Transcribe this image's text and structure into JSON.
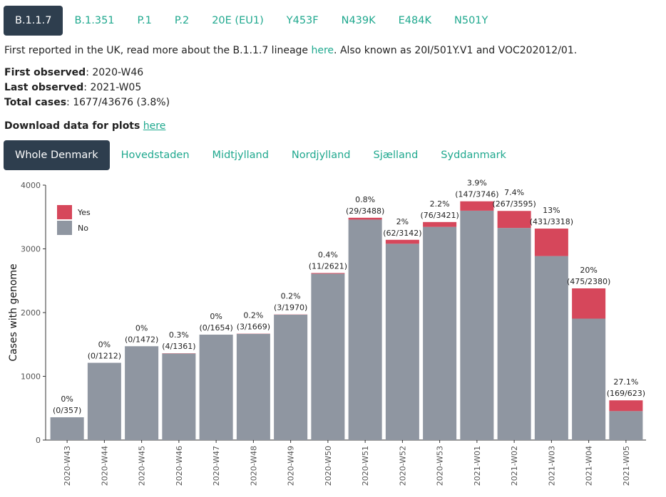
{
  "lineage_tabs": [
    "B.1.1.7",
    "B.1.351",
    "P.1",
    "P.2",
    "20E (EU1)",
    "Y453F",
    "N439K",
    "E484K",
    "N501Y"
  ],
  "active_lineage": 0,
  "description": {
    "before": "First reported in the UK, read more about the B.1.1.7 lineage ",
    "link": "here",
    "after": ". Also known as 20I/501Y.V1 and VOC202012/01."
  },
  "stats": {
    "first_observed_label": "First observed",
    "first_observed": "2020-W46",
    "last_observed_label": "Last observed",
    "last_observed": "2021-W05",
    "total_cases_label": "Total cases",
    "total_cases": "1677/43676 (3.8%)"
  },
  "download": {
    "label": "Download data for plots",
    "link": "here"
  },
  "region_tabs": [
    "Whole Denmark",
    "Hovedstaden",
    "Midtjylland",
    "Nordjylland",
    "Sjælland",
    "Syddanmark"
  ],
  "active_region": 0,
  "colors": {
    "yes": "#d6475b",
    "no": "#8f96a1",
    "accent": "#1fa88e",
    "active_tab": "#2e3e4e"
  },
  "chart_data": {
    "type": "bar",
    "stacked": true,
    "categories": [
      "2020-W43",
      "2020-W44",
      "2020-W45",
      "2020-W46",
      "2020-W47",
      "2020-W48",
      "2020-W49",
      "2020-W50",
      "2020-W51",
      "2020-W52",
      "2020-W53",
      "2021-W01",
      "2021-W02",
      "2021-W03",
      "2021-W04",
      "2021-W05"
    ],
    "series": [
      {
        "name": "Yes",
        "values": [
          0,
          0,
          0,
          4,
          0,
          3,
          3,
          11,
          29,
          62,
          76,
          147,
          267,
          431,
          475,
          169
        ]
      },
      {
        "name": "No",
        "values": [
          357,
          1212,
          1472,
          1357,
          1654,
          1666,
          1967,
          2610,
          3459,
          3080,
          3345,
          3599,
          3328,
          2887,
          1905,
          454
        ]
      }
    ],
    "labels_pct": [
      "0%",
      "0%",
      "0%",
      "0.3%",
      "0%",
      "0.2%",
      "0.2%",
      "0.4%",
      "0.8%",
      "2%",
      "2.2%",
      "3.9%",
      "7.4%",
      "13%",
      "20%",
      "27.1%"
    ],
    "labels_counts": [
      "(0/357)",
      "(0/1212)",
      "(0/1472)",
      "(4/1361)",
      "(0/1654)",
      "(3/1669)",
      "(3/1970)",
      "(11/2621)",
      "(29/3488)",
      "(62/3142)",
      "(76/3421)",
      "(147/3746)",
      "(267/3595)",
      "(431/3318)",
      "(475/2380)",
      "(169/623)"
    ],
    "ylabel": "Cases with genome",
    "xlabel": "",
    "ylim": [
      0,
      4000
    ],
    "yticks": [
      0,
      1000,
      2000,
      3000,
      4000
    ],
    "legend": "top-left",
    "grid": false
  }
}
